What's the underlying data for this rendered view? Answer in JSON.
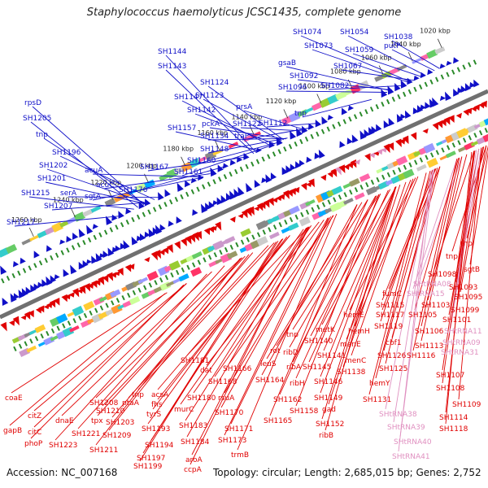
{
  "header": {
    "title": "Staphylococcus haemolyticus JCSC1435, complete genome"
  },
  "footer": {
    "accession": "Accession: NC_007168",
    "summary": "Topology: circular; Length: 2,685,015 bp; Genes: 2,752"
  },
  "colors": {
    "forward": "#1010c8",
    "reverse": "#e00000",
    "rna": "#e090c0",
    "backbone": "#707070",
    "tick": "#2a8a2a"
  },
  "kbp_ticks": [
    "1020 kbp",
    "1040 kbp",
    "1060 kbp",
    "1080 kbp",
    "1100 kbp",
    "1120 kbp",
    "1140 kbp",
    "1160 kbp",
    "1180 kbp",
    "1200 kbp",
    "1220 kbp",
    "1240 kbp",
    "1260 kbp"
  ],
  "upper_labels": [
    "SH1038",
    "SH1054",
    "SH1074",
    "SH1073",
    "putP",
    "SH1059",
    "SH1067",
    "gsaB",
    "SH1092",
    "SH1096",
    "SH1082",
    "SH1144",
    "SH1143",
    "SH1124",
    "SH1123",
    "SH1147",
    "prsA",
    "SH1142",
    "pckA",
    "SH1122",
    "SH1112",
    "traP",
    "SH1157",
    "SH1134",
    "SH1148",
    "tnp",
    "SH1160",
    "SH1161",
    "SH1167",
    "SH1176",
    "acuA",
    "acuC",
    "sgtA",
    "rpsD",
    "SH1205",
    "tnp",
    "SH1196",
    "SH1202",
    "SH1201",
    "serA",
    "SH1215",
    "SH1207",
    "SH1217"
  ],
  "lower_labels": [
    "tnp",
    "tnp",
    "SH1098",
    "sgtB",
    "SHtRNA08",
    "SH1093",
    "SHtRNA15",
    "SH1095",
    "fumC",
    "SH1099",
    "SH1103",
    "SH1115",
    "SH1105",
    "SH1101",
    "SH1117",
    "SH1106",
    "SHtRNA11",
    "hemE",
    "SH1119",
    "cbf1",
    "SH1113",
    "SHtRNA09",
    "hemH",
    "SH1116",
    "SHtRNA31",
    "metK",
    "SH1126",
    "SH1107",
    "menE",
    "SH1125",
    "SH1108",
    "menC",
    "tnp",
    "SH1140",
    "SH1138",
    "SH1145",
    "rot",
    "ribD",
    "leuS",
    "SH1141",
    "SH1146",
    "ribA",
    "ribH",
    "SH1164",
    "SH1109",
    "hemY",
    "SH1131",
    "SH1114",
    "SH1149",
    "gad",
    "SH1162",
    "SH1158",
    "SHtRNA38",
    "SH1118",
    "SH1152",
    "SH1165",
    "ribB",
    "SHtRNA39",
    "SH1166",
    "SH1168",
    "SHtRNA40",
    "SH1170",
    "dat",
    "rsuA",
    "SHtRNA41",
    "SH1171",
    "trmB",
    "SH1173",
    "SH1181",
    "SH1180",
    "acsA",
    "fhs",
    "tyrS",
    "murC",
    "SH1183",
    "SH1184",
    "aroA",
    "ccpA",
    "tnp",
    "ptaA",
    "SH1193",
    "SH1194",
    "SH1197",
    "SH1199",
    "SH1208",
    "tpx",
    "SH1203",
    "SH1210",
    "SH1209",
    "SH1211",
    "dnaE",
    "SH1221",
    "SH1223",
    "citZ",
    "citC",
    "phoP",
    "coaE",
    "gapB"
  ]
}
